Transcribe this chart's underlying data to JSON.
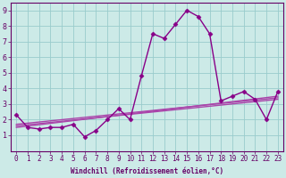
{
  "x": [
    0,
    1,
    2,
    3,
    4,
    5,
    6,
    7,
    8,
    9,
    10,
    11,
    12,
    13,
    14,
    15,
    16,
    17,
    18,
    19,
    20,
    21,
    22,
    23
  ],
  "y_main": [
    2.3,
    1.5,
    1.4,
    1.5,
    1.5,
    1.7,
    0.9,
    1.3,
    2.0,
    2.7,
    2.0,
    4.8,
    7.5,
    7.2,
    8.1,
    9.0,
    8.6,
    7.5,
    3.2,
    3.5,
    3.8,
    3.3,
    2.0,
    3.8
  ],
  "bg_color": "#cceae7",
  "line_color": "#880088",
  "grid_color": "#99cccc",
  "axis_color": "#660066",
  "xlabel": "Windchill (Refroidissement éolien,°C)",
  "xlim_min": -0.5,
  "xlim_max": 23.5,
  "ylim_min": 0,
  "ylim_max": 9.5,
  "xticks": [
    0,
    1,
    2,
    3,
    4,
    5,
    6,
    7,
    8,
    9,
    10,
    11,
    12,
    13,
    14,
    15,
    16,
    17,
    18,
    19,
    20,
    21,
    22,
    23
  ],
  "yticks": [
    1,
    2,
    3,
    4,
    5,
    6,
    7,
    8,
    9
  ],
  "marker": "D",
  "marker_size": 2.5,
  "line_width": 1.0,
  "trend_color": "#aa44aa",
  "trend1_y0": 1.5,
  "trend1_y1": 3.5,
  "trend2_y0": 1.6,
  "trend2_y1": 3.3,
  "trend3_y0": 1.7,
  "trend3_y1": 3.4,
  "tick_fontsize": 5.5,
  "xlabel_fontsize": 5.5
}
